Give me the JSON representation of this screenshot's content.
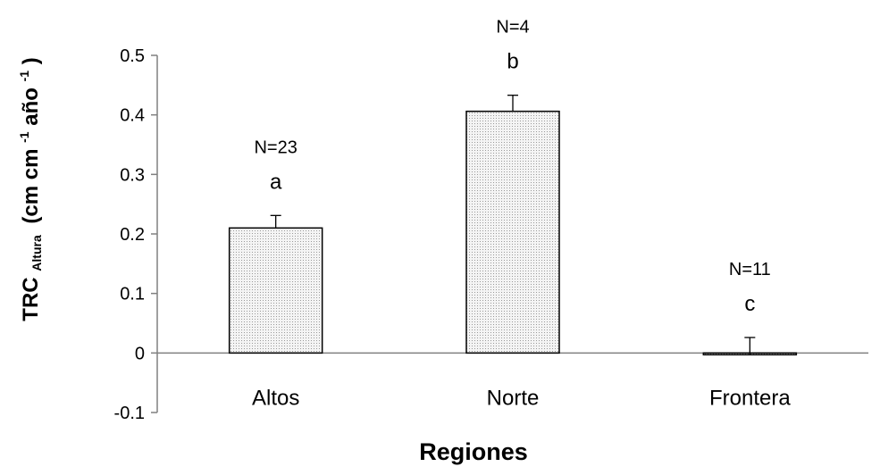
{
  "chart_data": {
    "type": "bar",
    "categories": [
      "Altos",
      "Norte",
      "Frontera"
    ],
    "values": [
      0.21,
      0.406,
      -0.003
    ],
    "error_plus": [
      0.021,
      0.027,
      0.029
    ],
    "annotations_n": [
      "N=23",
      "N=4",
      "N=11"
    ],
    "annotations_letter": [
      "a",
      "b",
      "c"
    ],
    "ylim": [
      -0.1,
      0.5
    ],
    "yticks": [
      -0.1,
      0,
      0.1,
      0.2,
      0.3,
      0.4,
      0.5
    ],
    "ytick_labels": [
      "-0.1",
      "0",
      "0.1",
      "0.2",
      "0.3",
      "0.4",
      "0.5"
    ],
    "xlabel": "Regiones",
    "ylabel": {
      "main": "TRC",
      "subscript": "Altura",
      "units_prefix": "(cm cm",
      "units_sup1": "-1",
      "units_mid": " año",
      "units_sup2": "-1",
      "units_suffix": ")"
    },
    "grid": false,
    "bar_fill": "#f0f0f0",
    "bar_stroke": "#000000",
    "axis_color": "#808080"
  }
}
